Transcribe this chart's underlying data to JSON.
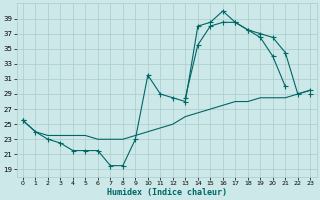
{
  "xlabel": "Humidex (Indice chaleur)",
  "bg_color": "#cce8e8",
  "grid_color": "#aacccc",
  "line_color": "#006666",
  "xlim": [
    -0.5,
    23.5
  ],
  "ylim": [
    18,
    41
  ],
  "xticks": [
    0,
    1,
    2,
    3,
    4,
    5,
    6,
    7,
    8,
    9,
    10,
    11,
    12,
    13,
    14,
    15,
    16,
    17,
    18,
    19,
    20,
    21,
    22,
    23
  ],
  "yticks": [
    19,
    21,
    23,
    25,
    27,
    29,
    31,
    33,
    35,
    37,
    39
  ],
  "line1_x": [
    0,
    1,
    2,
    3,
    4,
    5,
    6,
    7,
    8,
    9,
    10,
    11,
    12,
    13,
    14,
    15,
    16,
    17,
    18,
    19,
    20,
    21,
    22,
    23
  ],
  "line1_y": [
    25.5,
    24.0,
    23.0,
    22.5,
    21.5,
    21.5,
    21.5,
    19.5,
    19.5,
    23.0,
    31.5,
    29.0,
    28.5,
    28.0,
    38.0,
    38.5,
    40.0,
    38.5,
    37.5,
    36.5,
    34.0,
    30.0,
    null,
    29.0
  ],
  "line2_x": [
    0,
    1,
    2,
    3,
    4,
    5,
    6,
    7,
    8,
    9,
    10,
    11,
    12,
    13,
    14,
    15,
    16,
    17,
    18,
    19,
    20,
    21,
    22,
    23
  ],
  "line2_y": [
    25.5,
    null,
    null,
    null,
    null,
    null,
    null,
    null,
    null,
    null,
    null,
    null,
    null,
    28.5,
    35.5,
    38.0,
    38.5,
    38.5,
    37.5,
    37.0,
    36.5,
    34.5,
    29.0,
    29.5
  ],
  "line3_x": [
    0,
    1,
    2,
    3,
    4,
    5,
    6,
    7,
    8,
    9,
    10,
    11,
    12,
    13,
    14,
    15,
    16,
    17,
    18,
    19,
    20,
    21,
    22,
    23
  ],
  "line3_y": [
    25.5,
    24.0,
    23.5,
    23.5,
    23.5,
    23.5,
    23.0,
    23.0,
    23.0,
    23.5,
    24.0,
    24.5,
    25.0,
    26.0,
    26.5,
    27.0,
    27.5,
    28.0,
    28.0,
    28.5,
    28.5,
    28.5,
    29.0,
    29.5
  ]
}
